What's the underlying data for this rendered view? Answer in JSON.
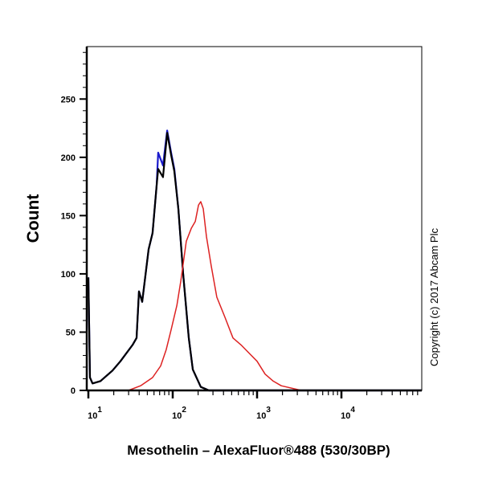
{
  "chart_data": {
    "type": "line",
    "title": "",
    "xlabel": "Mesothelin – AlexaFluor®488 (530/30BP)",
    "ylabel": "Count",
    "xscale": "log",
    "xlim": [
      10,
      89600
    ],
    "ylim": [
      0,
      295
    ],
    "yticks": [
      0,
      50,
      100,
      150,
      200,
      250
    ],
    "xticks": [
      {
        "value": 10,
        "base": "10",
        "exp": "1"
      },
      {
        "value": 100,
        "base": "10",
        "exp": "2"
      },
      {
        "value": 1000,
        "base": "10",
        "exp": "3"
      },
      {
        "value": 10000,
        "base": "10",
        "exp": "4"
      }
    ],
    "grid": false,
    "annotation": "Copyright (c) 2017 Abcam Plc",
    "series": [
      {
        "color": "#1a1acc",
        "x": [
          10,
          10.45,
          11.2,
          13.9,
          19.3,
          24.0,
          33.4,
          37.3,
          39.8,
          43.5,
          51.8,
          57.7,
          64.5,
          67.3,
          76.7,
          85.9,
          95.7,
          104.5,
          116.6,
          133,
          155,
          173,
          215,
          268,
          89600
        ],
        "y": [
          97,
          11,
          6,
          8,
          17,
          25,
          39,
          45,
          85,
          76,
          121,
          135,
          176,
          204,
          193,
          223,
          204,
          190,
          156,
          100,
          45,
          18,
          3,
          0,
          0
        ]
      },
      {
        "color": "#000000",
        "x": [
          10,
          10.45,
          11.2,
          13.9,
          19.3,
          24.0,
          33.4,
          37.3,
          39.8,
          43.5,
          51.8,
          57.7,
          64.5,
          67.3,
          76.7,
          85.9,
          95.7,
          104.5,
          116.6,
          133,
          155,
          173,
          215,
          268,
          89600
        ],
        "y": [
          97,
          11,
          6,
          8,
          17,
          25,
          39,
          45,
          85,
          76,
          121,
          135,
          176,
          190,
          183,
          221,
          202,
          188,
          156,
          100,
          45,
          18,
          3,
          0,
          0
        ]
      },
      {
        "color": "#dd2222",
        "x": [
          10,
          29.9,
          41.6,
          57.7,
          71.9,
          83.7,
          95.7,
          112,
          124.9,
          145,
          166,
          185,
          202,
          215,
          230,
          251,
          286,
          333,
          415,
          518,
          646,
          805,
          1000,
          1246,
          1553,
          1936,
          3347,
          89600
        ],
        "y": [
          0,
          0,
          4,
          11,
          21,
          35,
          52,
          73,
          94,
          128,
          139,
          145,
          159,
          162,
          156,
          132,
          107,
          80,
          63,
          45,
          39,
          32,
          25,
          14,
          8,
          4,
          0,
          0
        ]
      }
    ]
  }
}
